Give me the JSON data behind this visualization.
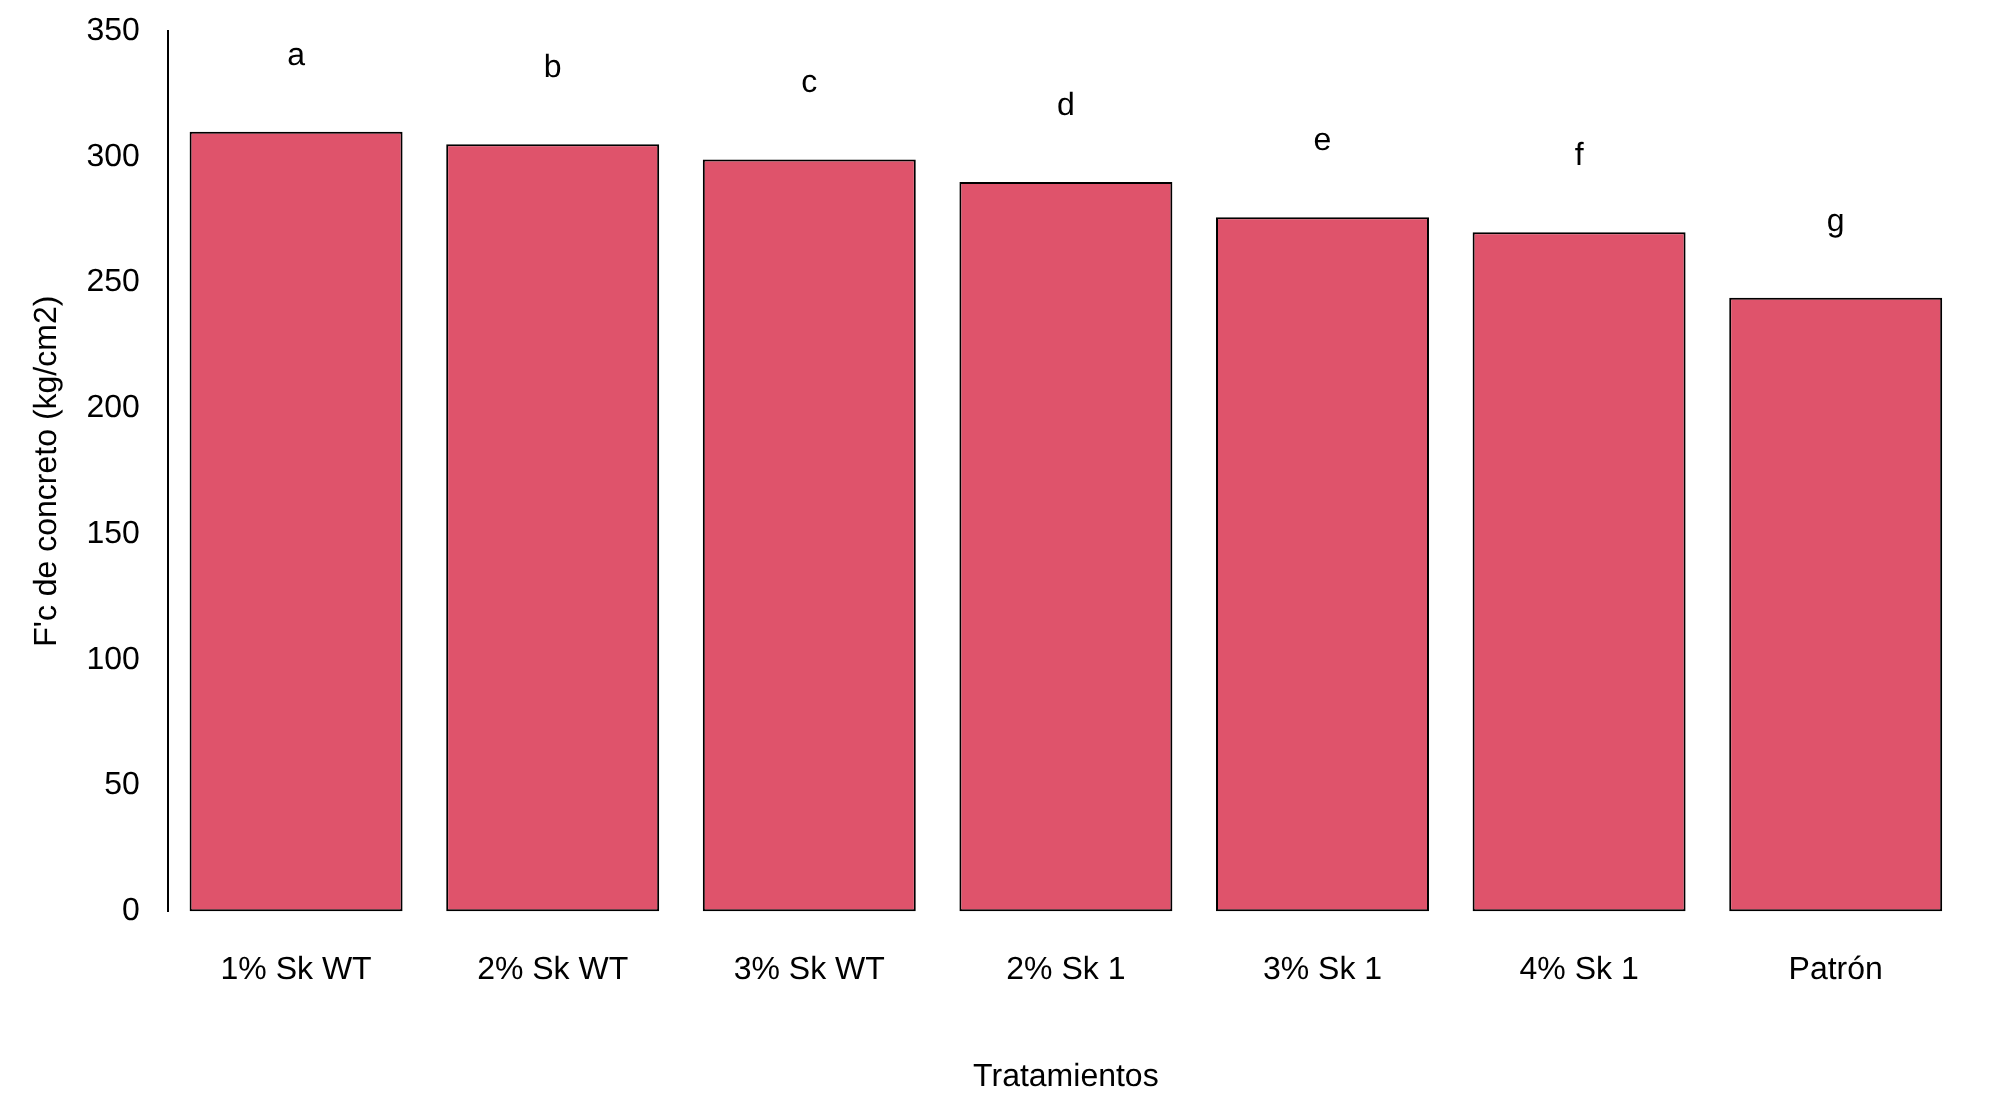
{
  "chart_data": {
    "type": "bar",
    "categories": [
      "1% Sk WT",
      "2% Sk WT",
      "3% Sk WT",
      "2% Sk 1",
      "3% Sk 1",
      "4% Sk 1",
      "Patrón"
    ],
    "values": [
      310,
      305,
      299,
      290,
      276,
      270,
      244
    ],
    "color": "#df536b",
    "ylim": [
      0,
      350
    ],
    "yticks": [
      0,
      50,
      100,
      150,
      200,
      250,
      300,
      350
    ],
    "xlabel": "Tratamientos",
    "ylabel": "F'c de concreto (kg/cm2)",
    "grid": false,
    "legend": false,
    "value_labels": [
      "a",
      "b",
      "c",
      "d",
      "e",
      "f",
      "g"
    ]
  }
}
